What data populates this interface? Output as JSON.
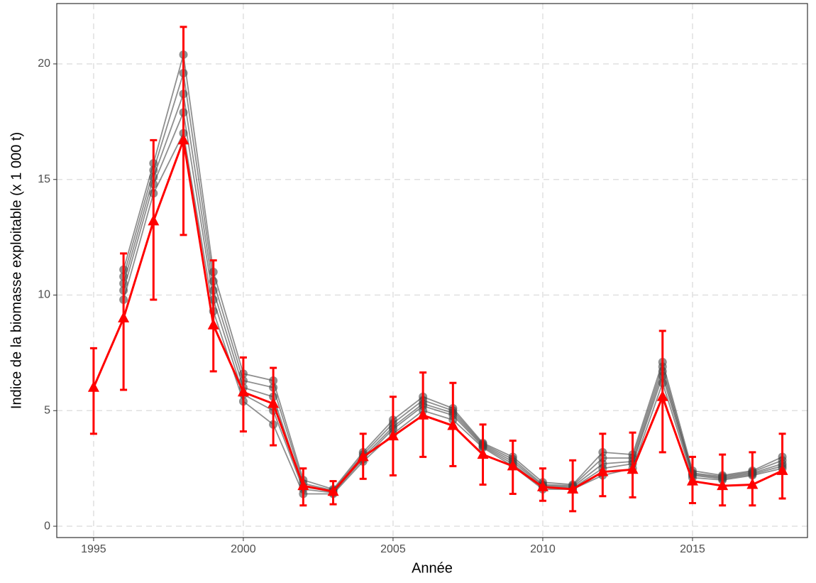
{
  "chart_data": {
    "type": "line",
    "x_label": "Année",
    "y_label": "Indice de la biomasse exploitable (x 1 000 t)",
    "x": [
      1995,
      1996,
      1997,
      1998,
      1999,
      2000,
      2001,
      2002,
      2003,
      2004,
      2005,
      2006,
      2007,
      2008,
      2009,
      2010,
      2011,
      2012,
      2013,
      2014,
      2015,
      2016,
      2017,
      2018
    ],
    "xlim": [
      1993.77,
      2018.84
    ],
    "xticks": [
      1995,
      2000,
      2005,
      2010,
      2015
    ],
    "ylim": [
      -0.49,
      22.61
    ],
    "yticks": [
      0,
      5,
      10,
      15,
      20
    ],
    "grid": true,
    "series": [
      {
        "color": "#444444",
        "values": [
          null,
          9.8,
          14.4,
          17.0,
          9.3,
          5.4,
          4.4,
          1.4,
          1.4,
          2.8,
          4.0,
          5.0,
          4.6,
          3.4,
          2.6,
          1.6,
          1.6,
          2.2,
          2.5,
          6.2,
          2.1,
          2.0,
          2.2,
          2.5
        ]
      },
      {
        "color": "#444444",
        "values": [
          null,
          10.2,
          14.8,
          17.9,
          9.8,
          5.7,
          5.0,
          1.6,
          1.45,
          2.9,
          4.2,
          5.2,
          4.8,
          3.45,
          2.7,
          1.7,
          1.65,
          2.5,
          2.7,
          6.5,
          2.2,
          2.05,
          2.25,
          2.6
        ]
      },
      {
        "color": "#444444",
        "values": [
          null,
          10.5,
          15.1,
          18.7,
          10.2,
          6.0,
          5.6,
          1.7,
          1.5,
          3.0,
          4.3,
          5.3,
          4.9,
          3.5,
          2.8,
          1.75,
          1.7,
          2.7,
          2.8,
          6.7,
          2.25,
          2.1,
          2.3,
          2.7
        ]
      },
      {
        "color": "#444444",
        "values": [
          null,
          10.8,
          15.4,
          19.6,
          10.6,
          6.3,
          6.0,
          1.85,
          1.55,
          3.1,
          4.45,
          5.45,
          5.0,
          3.55,
          2.9,
          1.8,
          1.75,
          2.95,
          2.95,
          6.9,
          2.3,
          2.15,
          2.35,
          2.85
        ]
      },
      {
        "color": "#444444",
        "values": [
          null,
          11.1,
          15.7,
          20.4,
          11.0,
          6.6,
          6.3,
          2.0,
          1.6,
          3.2,
          4.6,
          5.6,
          5.1,
          3.6,
          3.0,
          1.9,
          1.8,
          3.2,
          3.1,
          7.1,
          2.4,
          2.2,
          2.4,
          3.0
        ]
      },
      {
        "color": "#ff0000",
        "values": [
          6.0,
          9.0,
          13.2,
          16.7,
          8.7,
          5.8,
          5.3,
          1.75,
          1.5,
          3.0,
          3.9,
          4.8,
          4.35,
          3.1,
          2.6,
          1.7,
          1.6,
          2.35,
          2.45,
          5.6,
          1.95,
          1.75,
          1.8,
          2.4
        ],
        "lower": [
          4.0,
          5.9,
          9.8,
          12.6,
          6.7,
          4.1,
          3.5,
          0.9,
          0.95,
          2.05,
          2.2,
          3.0,
          2.6,
          1.8,
          1.4,
          1.1,
          0.65,
          1.3,
          1.25,
          3.2,
          1.0,
          0.9,
          0.9,
          1.2
        ],
        "upper": [
          7.7,
          11.8,
          16.7,
          21.6,
          11.5,
          7.3,
          6.85,
          2.5,
          1.95,
          4.0,
          5.6,
          6.65,
          6.2,
          4.4,
          3.7,
          2.5,
          2.85,
          4.0,
          4.05,
          8.45,
          3.0,
          3.1,
          3.2,
          4.0
        ]
      }
    ]
  }
}
